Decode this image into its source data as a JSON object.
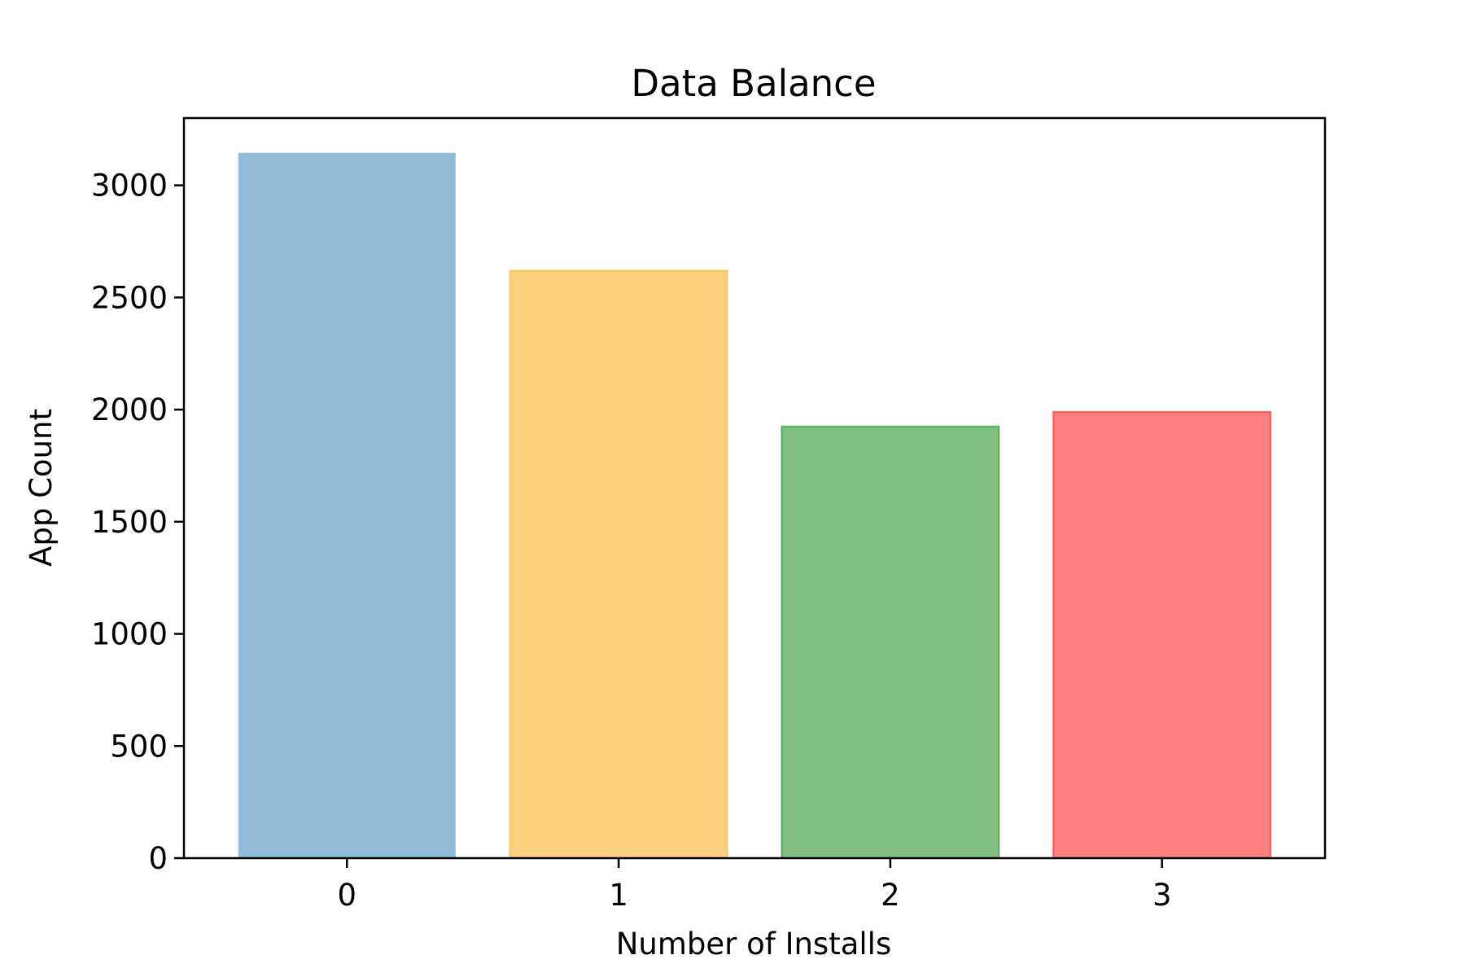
{
  "chart_data": {
    "type": "bar",
    "title": "Data Balance",
    "xlabel": "Number of Installs",
    "ylabel": "App Count",
    "categories": [
      "0",
      "1",
      "2",
      "3"
    ],
    "values": [
      3145,
      2620,
      1925,
      1990
    ],
    "colors": [
      "#1f77b4",
      "#ffa500",
      "#008000",
      "#ff0000"
    ],
    "bar_opacity": 0.5,
    "ylim": [
      0,
      3300
    ],
    "yticks": [
      0,
      500,
      1000,
      1500,
      2000,
      2500,
      3000
    ],
    "grid": false,
    "legend": "none"
  }
}
